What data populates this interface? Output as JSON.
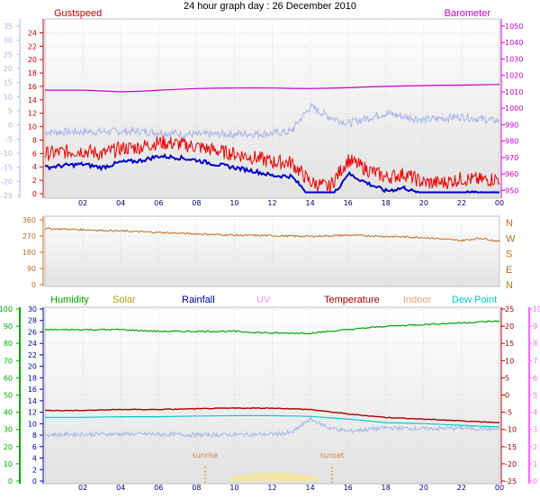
{
  "title": "24 hour graph day : 26 December 2010",
  "colors": {
    "wind_light": "#a9b4e9",
    "gust_red": "#ee0000",
    "avg_blue": "#0000cc",
    "barometer": "#cc00cc",
    "direction": "#c07020",
    "humidity": "#00aa00",
    "solar": "#b0a000",
    "rainfall": "#0000aa",
    "uv": "#ff66ff",
    "temperature": "#aa0000",
    "indoor": "#e8a070",
    "dewpoint": "#00cccc",
    "temp_light": "#a9b4e9",
    "panel_bg_top": "#ffffff",
    "panel_bg_bottom": "#e4e4e4"
  },
  "x_ticks": [
    "02",
    "04",
    "06",
    "08",
    "10",
    "12",
    "14",
    "16",
    "18",
    "20",
    "22",
    "00"
  ],
  "chart_data": [
    {
      "type": "line",
      "title": "24 hour graph day : 26 December 2010",
      "left_label": "Gustspeed",
      "right_label": "Barometer",
      "outer_left_ticks": [
        "35",
        "30",
        "25",
        "20",
        "15",
        "10",
        "5",
        "0",
        "-5",
        "-10",
        "-15",
        "-20",
        "-25"
      ],
      "inner_left_ticks": [
        "24",
        "22",
        "20",
        "18",
        "16",
        "14",
        "12",
        "10",
        "8",
        "6",
        "4",
        "2",
        "0"
      ],
      "right_ticks": [
        "1050",
        "1040",
        "1030",
        "1020",
        "1010",
        "1000",
        "990",
        "980",
        "970",
        "960",
        "950"
      ],
      "ylim_left": [
        0,
        25
      ],
      "ylim_right": [
        948,
        1050
      ],
      "x_hours": [
        0,
        1,
        2,
        3,
        4,
        5,
        6,
        7,
        8,
        9,
        10,
        11,
        12,
        13,
        14,
        15,
        16,
        17,
        18,
        19,
        20,
        21,
        22,
        23,
        24
      ],
      "series": [
        {
          "name": "Gustspeed",
          "values": [
            5.5,
            5.8,
            6.0,
            5.5,
            6.3,
            6.5,
            7.2,
            7.0,
            6.6,
            6.0,
            5.5,
            5.0,
            4.3,
            4.2,
            1.3,
            0.5,
            4.6,
            3.2,
            2.0,
            2.5,
            1.2,
            1.2,
            1.8,
            1.6,
            1.8
          ]
        },
        {
          "name": "Barometer",
          "values": [
            1011,
            1011,
            1011,
            1010.5,
            1010,
            1010.3,
            1011,
            1011.5,
            1012,
            1012.2,
            1012.3,
            1012.4,
            1012.3,
            1012.1,
            1012,
            1012.2,
            1012.5,
            1013,
            1013.3,
            1013.6,
            1013.8,
            1014,
            1014.1,
            1014.3,
            1014.5
          ]
        }
      ]
    },
    {
      "type": "line",
      "title": "",
      "left_ticks": [
        "360",
        "270",
        "180",
        "90",
        "0"
      ],
      "right_ticks": [
        "N",
        "W",
        "S",
        "E",
        "N"
      ],
      "ylim": [
        0,
        360
      ],
      "x_hours": [
        0,
        2,
        4,
        6,
        8,
        10,
        12,
        14,
        16,
        18,
        20,
        22,
        23,
        24
      ],
      "series": [
        {
          "name": "",
          "values": [
            312,
            305,
            298,
            290,
            282,
            275,
            272,
            268,
            275,
            268,
            262,
            245,
            258,
            240
          ]
        }
      ]
    },
    {
      "type": "line",
      "title": "",
      "legend": [
        "Humidity",
        "Solar",
        "Rainfall",
        "UV",
        "Temperature",
        "Indoor",
        "Dew Point"
      ],
      "humidity_ticks": [
        "100",
        "90",
        "80",
        "70",
        "60",
        "50",
        "40",
        "30",
        "20",
        "10",
        "0"
      ],
      "rain_ticks": [
        "30",
        "28",
        "26",
        "24",
        "22",
        "20",
        "18",
        "16",
        "14",
        "12",
        "10",
        "8",
        "6",
        "4",
        "2",
        "0"
      ],
      "temp_ticks": [
        "25",
        "20",
        "15",
        "10",
        "5",
        "0",
        "-5",
        "-10",
        "-15",
        "-20",
        "-25"
      ],
      "uv_ticks": [
        "10",
        "9",
        "8",
        "7",
        "6",
        "5",
        "4",
        "3",
        "2",
        "1",
        "0"
      ],
      "annotations": [
        "sunrise",
        "sunset"
      ],
      "x_hours": [
        0,
        2,
        4,
        6,
        8,
        10,
        12,
        14,
        16,
        18,
        20,
        22,
        24
      ],
      "series": [
        {
          "name": "Humidity",
          "values": [
            88,
            88,
            88,
            87,
            87,
            87,
            86,
            86,
            88,
            90,
            91,
            92,
            93
          ]
        },
        {
          "name": "Temperature",
          "values": [
            -4.5,
            -4.5,
            -4.2,
            -4.2,
            -4.0,
            -3.8,
            -3.8,
            -4.2,
            -5.5,
            -6.5,
            -7.0,
            -7.5,
            -8.0
          ]
        },
        {
          "name": "Dew Point",
          "values": [
            -6.5,
            -6.5,
            -6.3,
            -6.3,
            -6.1,
            -6.0,
            -6.0,
            -6.2,
            -7.0,
            -8.0,
            -8.3,
            -8.8,
            -9.3
          ]
        },
        {
          "name": "Solar",
          "values": [
            0,
            0,
            0,
            0,
            0,
            2,
            5,
            2,
            0,
            0,
            0,
            0,
            0
          ]
        }
      ]
    }
  ]
}
